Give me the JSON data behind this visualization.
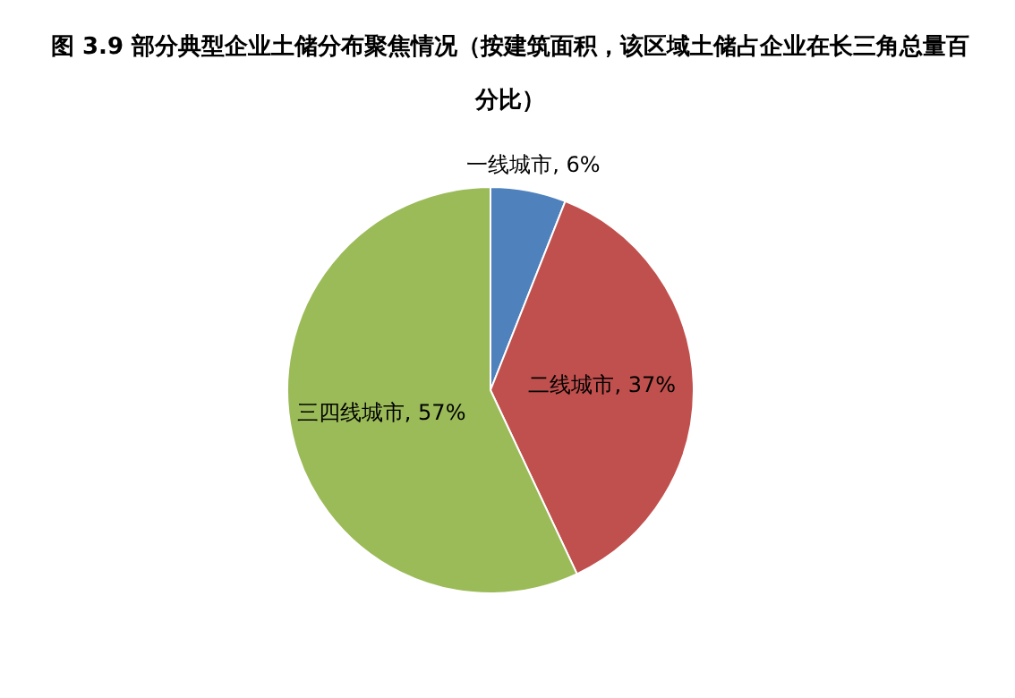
{
  "chart_data": {
    "type": "pie",
    "title": "图 3.9   部分典型企业土储分布聚焦情况（按建筑面积，该区域土储占企业在长三角总量百分比）",
    "categories": [
      "一线城市",
      "二线城市",
      "三四线城市"
    ],
    "values": [
      6,
      37,
      57
    ],
    "value_labels": [
      "6%",
      "37%",
      "57%"
    ],
    "colors": [
      "#4f81bd",
      "#c0504d",
      "#9bbb59"
    ],
    "legend": false
  }
}
